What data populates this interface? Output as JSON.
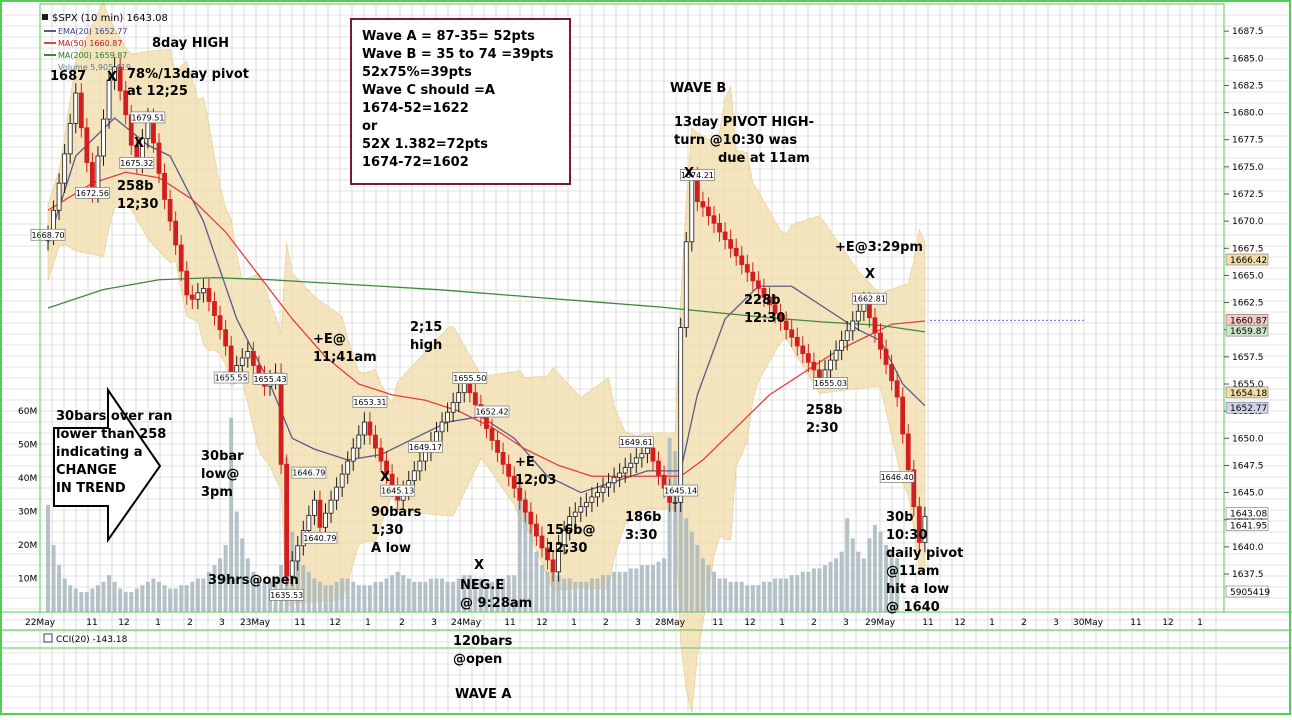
{
  "legend": {
    "symbol": "$SPX (10 min) 1643.08",
    "ema20": "EMA(20) 1652.77",
    "ma50": "MA(50) 1660.87",
    "ma200": "MA(200) 1659.87",
    "volume": "Volume 5,905,419"
  },
  "colors": {
    "up_candle": "#1a1a1a",
    "down_candle": "#d21e1e",
    "ema": "#5a5a8a",
    "ma50": "#e04040",
    "ma200": "#3a8a3a",
    "band": "#f2dcaa",
    "volume": "#a8b8c0",
    "grid": "#c8c8c8",
    "border": "#55cc55"
  },
  "chart_data": {
    "type": "candlestick",
    "symbol": "$SPX",
    "interval": "10 min",
    "y_range": [
      1634,
      1690
    ],
    "y_ticks": [
      "1687.5",
      "1685.0",
      "1682.5",
      "1680.0",
      "1677.5",
      "1675.0",
      "1672.5",
      "1670.0",
      "1667.5",
      "1665.0",
      "1662.5",
      "1660.0",
      "1657.5",
      "1655.0",
      "1652.5",
      "1650.0",
      "1647.5",
      "1645.0",
      "1642.5",
      "1640.0",
      "1637.5"
    ],
    "y_tick_values": [
      1687.5,
      1685,
      1682.5,
      1680,
      1677.5,
      1675,
      1672.5,
      1670,
      1667.5,
      1665,
      1662.5,
      1660,
      1657.5,
      1655,
      1652.5,
      1650,
      1647.5,
      1645,
      1642.5,
      1640,
      1637.5
    ],
    "right_price_labels": [
      "1666.42",
      "1660.87",
      "1659.87",
      "1654.18",
      "1652.77",
      "1643.08",
      "1641.95",
      "5905419"
    ],
    "right_price_values": [
      1666.42,
      1660.87,
      1659.87,
      1654.18,
      1652.77,
      1643.08,
      1641.95
    ],
    "volume_ticks": [
      "60M",
      "50M",
      "40M",
      "30M",
      "20M",
      "10M"
    ],
    "volume_tick_values": [
      60,
      50,
      40,
      30,
      20,
      10
    ],
    "x_labels": [
      "22May",
      "11",
      "12",
      "1",
      "2",
      "3",
      "23May",
      "11",
      "12",
      "1",
      "2",
      "3",
      "24May",
      "11",
      "12",
      "1",
      "2",
      "3",
      "28May",
      "11",
      "12",
      "1",
      "2",
      "3",
      "29May",
      "11",
      "12",
      "1",
      "2",
      "3",
      "30May",
      "11",
      "12",
      "1"
    ],
    "price_labels": [
      {
        "text": "1679.51",
        "price": 1679.51,
        "bar": 18
      },
      {
        "text": "1675.32",
        "price": 1675.32,
        "bar": 16
      },
      {
        "text": "1672.56",
        "price": 1672.56,
        "bar": 8
      },
      {
        "text": "1668.70",
        "price": 1668.7,
        "bar": 0
      },
      {
        "text": "1655.43",
        "price": 1655.43,
        "bar": 40
      },
      {
        "text": "1655.55",
        "price": 1655.55,
        "bar": 33
      },
      {
        "text": "1646.79",
        "price": 1646.79,
        "bar": 47
      },
      {
        "text": "1640.79",
        "price": 1640.79,
        "bar": 49
      },
      {
        "text": "1635.53",
        "price": 1635.53,
        "bar": 43
      },
      {
        "text": "1653.31",
        "price": 1653.31,
        "bar": 58
      },
      {
        "text": "1655.50",
        "price": 1655.5,
        "bar": 76
      },
      {
        "text": "1652.42",
        "price": 1652.42,
        "bar": 80
      },
      {
        "text": "1649.17",
        "price": 1649.17,
        "bar": 68
      },
      {
        "text": "1645.13",
        "price": 1645.13,
        "bar": 63
      },
      {
        "text": "1649.61",
        "price": 1649.61,
        "bar": 106
      },
      {
        "text": "1645.14",
        "price": 1645.14,
        "bar": 114
      },
      {
        "text": "1674.21",
        "price": 1674.21,
        "bar": 117
      },
      {
        "text": "1655.03",
        "price": 1655.03,
        "bar": 141
      },
      {
        "text": "1662.81",
        "price": 1662.81,
        "bar": 148
      },
      {
        "text": "1646.40",
        "price": 1646.4,
        "bar": 153
      }
    ],
    "series": [
      {
        "name": "$SPX",
        "kind": "candlestick",
        "close": [
          1668.7,
          1671.0,
          1673.5,
          1676.2,
          1679.0,
          1681.8,
          1678.6,
          1675.4,
          1672.6,
          1676.0,
          1679.4,
          1683.0,
          1684.2,
          1682.0,
          1679.8,
          1677.0,
          1675.3,
          1677.6,
          1679.5,
          1677.2,
          1674.4,
          1672.0,
          1670.0,
          1667.8,
          1665.4,
          1663.2,
          1662.8,
          1663.4,
          1663.8,
          1662.6,
          1661.3,
          1660.0,
          1658.5,
          1656.1,
          1656.7,
          1657.4,
          1658.0,
          1656.7,
          1655.8,
          1654.8,
          1655.4,
          1656.0,
          1647.6,
          1637.3,
          1638.7,
          1640.1,
          1641.5,
          1642.9,
          1644.3,
          1641.8,
          1643.1,
          1644.3,
          1645.5,
          1646.7,
          1647.9,
          1649.1,
          1650.3,
          1651.5,
          1650.3,
          1649.1,
          1647.9,
          1646.7,
          1645.5,
          1644.3,
          1645.2,
          1646.1,
          1647.0,
          1647.9,
          1648.8,
          1649.7,
          1650.6,
          1651.5,
          1652.4,
          1653.3,
          1654.2,
          1655.1,
          1654.2,
          1653.1,
          1652.0,
          1650.9,
          1649.8,
          1648.7,
          1647.6,
          1646.5,
          1645.4,
          1644.3,
          1643.2,
          1642.1,
          1641.0,
          1639.9,
          1638.8,
          1637.7,
          1640.2,
          1641.5,
          1642.8,
          1643.2,
          1643.7,
          1644.1,
          1644.6,
          1645.0,
          1645.5,
          1645.9,
          1646.4,
          1646.8,
          1647.3,
          1647.7,
          1648.2,
          1648.6,
          1649.1,
          1647.9,
          1646.6,
          1645.4,
          1644.1,
          1644.1,
          1660.2,
          1668.1,
          1674.1,
          1671.8,
          1671.3,
          1670.5,
          1669.8,
          1669.0,
          1668.3,
          1667.5,
          1666.8,
          1666.0,
          1665.3,
          1664.5,
          1663.8,
          1663.0,
          1662.3,
          1661.5,
          1660.8,
          1660.0,
          1659.3,
          1658.5,
          1657.8,
          1657.0,
          1656.3,
          1655.5,
          1656.3,
          1657.2,
          1658.1,
          1659.0,
          1659.9,
          1660.8,
          1661.7,
          1662.6,
          1661.1,
          1659.7,
          1658.2,
          1656.8,
          1655.3,
          1653.8,
          1650.4,
          1647.1,
          1643.7,
          1640.4,
          1642.8
        ]
      },
      {
        "name": "EMA(20)",
        "kind": "line",
        "color_key": "ema",
        "points": [
          [
            0,
            1668
          ],
          [
            5,
            1676
          ],
          [
            12,
            1679.5
          ],
          [
            18,
            1677
          ],
          [
            22,
            1676
          ],
          [
            28,
            1670
          ],
          [
            34,
            1661
          ],
          [
            40,
            1655
          ],
          [
            44,
            1650
          ],
          [
            48,
            1649
          ],
          [
            54,
            1648
          ],
          [
            60,
            1648.5
          ],
          [
            66,
            1650
          ],
          [
            72,
            1651.5
          ],
          [
            78,
            1652
          ],
          [
            84,
            1650
          ],
          [
            90,
            1646.5
          ],
          [
            96,
            1645
          ],
          [
            102,
            1646
          ],
          [
            108,
            1647
          ],
          [
            114,
            1647
          ],
          [
            117,
            1654
          ],
          [
            122,
            1661
          ],
          [
            128,
            1664
          ],
          [
            134,
            1664
          ],
          [
            140,
            1662
          ],
          [
            146,
            1660
          ],
          [
            150,
            1659
          ],
          [
            154,
            1655
          ],
          [
            158,
            1653
          ]
        ]
      },
      {
        "name": "MA(50)",
        "kind": "line",
        "color_key": "ma50",
        "points": [
          [
            0,
            1671
          ],
          [
            8,
            1673.5
          ],
          [
            14,
            1674.5
          ],
          [
            20,
            1674
          ],
          [
            26,
            1672
          ],
          [
            32,
            1669
          ],
          [
            38,
            1665
          ],
          [
            44,
            1661
          ],
          [
            50,
            1657.5
          ],
          [
            56,
            1655
          ],
          [
            62,
            1654
          ],
          [
            68,
            1653.5
          ],
          [
            74,
            1652.5
          ],
          [
            80,
            1651
          ],
          [
            86,
            1649
          ],
          [
            92,
            1647.5
          ],
          [
            98,
            1646.5
          ],
          [
            104,
            1646.5
          ],
          [
            110,
            1646.5
          ],
          [
            114,
            1646.5
          ],
          [
            118,
            1648
          ],
          [
            124,
            1651
          ],
          [
            130,
            1654
          ],
          [
            136,
            1656
          ],
          [
            142,
            1658
          ],
          [
            148,
            1659.5
          ],
          [
            152,
            1660.5
          ],
          [
            158,
            1660.8
          ]
        ]
      },
      {
        "name": "MA(200)",
        "kind": "line",
        "color_key": "ma200",
        "points": [
          [
            0,
            1662
          ],
          [
            10,
            1663.7
          ],
          [
            20,
            1664.6
          ],
          [
            30,
            1664.8
          ],
          [
            40,
            1664.6
          ],
          [
            50,
            1664.3
          ],
          [
            60,
            1664.0
          ],
          [
            70,
            1663.7
          ],
          [
            80,
            1663.3
          ],
          [
            90,
            1662.9
          ],
          [
            100,
            1662.5
          ],
          [
            110,
            1662.1
          ],
          [
            120,
            1661.6
          ],
          [
            130,
            1661.1
          ],
          [
            140,
            1660.7
          ],
          [
            150,
            1660.4
          ],
          [
            158,
            1659.8
          ]
        ]
      }
    ],
    "volume_millions": [
      32,
      20,
      14,
      10,
      8,
      7,
      6,
      6,
      7,
      8,
      9,
      11,
      9,
      7,
      6,
      6,
      7,
      8,
      9,
      10,
      9,
      8,
      7,
      7,
      8,
      8,
      9,
      10,
      10,
      12,
      14,
      16,
      20,
      58,
      30,
      22,
      16,
      12,
      10,
      9,
      9,
      10,
      14,
      46,
      24,
      18,
      14,
      12,
      10,
      9,
      8,
      8,
      9,
      10,
      10,
      9,
      8,
      8,
      8,
      9,
      9,
      10,
      11,
      12,
      11,
      10,
      9,
      9,
      9,
      10,
      10,
      10,
      9,
      9,
      10,
      11,
      11,
      10,
      10,
      9,
      9,
      10,
      10,
      11,
      11,
      40,
      34,
      26,
      18,
      14,
      12,
      12,
      11,
      10,
      10,
      9,
      9,
      9,
      10,
      10,
      11,
      11,
      12,
      12,
      12,
      13,
      13,
      14,
      14,
      14,
      15,
      16,
      52,
      48,
      36,
      28,
      24,
      20,
      16,
      14,
      12,
      10,
      10,
      9,
      9,
      9,
      8,
      8,
      8,
      9,
      9,
      10,
      10,
      10,
      11,
      11,
      12,
      12,
      13,
      13,
      14,
      15,
      16,
      18,
      28,
      22,
      18,
      16,
      22,
      26,
      24,
      20,
      18,
      16
    ],
    "cci": "CCI(20) -143.18"
  },
  "annotations": {
    "eight_day_high": "8day HIGH",
    "p1687": "1687",
    "x_mark": "X",
    "pivot_78": "78%/13day pivot",
    "at_1225": "at 12;25",
    "b258": "258b",
    "t1230": "12;30",
    "overran_1": "30bars over ran",
    "overran_2": "lower than 258",
    "overran_3": "indicating a",
    "overran_4": "CHANGE",
    "overran_5": "IN TREND",
    "bar30": "30bar",
    "low_at": "low@",
    "t3pm": "3pm",
    "h39": "39hrs@open",
    "pe_1": "+E@",
    "pe_2": "11;41am",
    "h215_1": "2;15",
    "h215_2": "high",
    "bars90": "90bars",
    "t130": "1;30",
    "alow": "A low",
    "pe_3": "+E",
    "t1203": "12;03",
    "b156": "156b@",
    "t1230b": "12;30",
    "b186": "186b",
    "t330": "3:30",
    "nege": "NEG.E",
    "at928": "@ 9:28am",
    "bars120": "120bars",
    "atopen": "@open",
    "wave_a": "WAVE A",
    "wave_b": "WAVE B",
    "pivot13_1": "13day PIVOT HIGH-",
    "pivot13_2": "turn @10:30 was",
    "pivot13_3": "due at 11am",
    "e329": "+E@3:29pm",
    "b228": "228b",
    "t1230c": "12:30",
    "b258b": "258b",
    "t230": "2:30",
    "b30": "30b",
    "t1030": "10:30",
    "dp1": "daily pivot",
    "dp2": "@11am",
    "dp3": "hit a low",
    "dp4": "@ 1640"
  },
  "wave_box": {
    "lines": [
      "Wave A = 87-35= 52pts",
      "Wave B = 35 to 74 =39pts",
      "52x75%=39pts",
      "Wave C should =A",
      "1674-52=1622",
      "or",
      "52X 1.382=72pts",
      "1674-72=1602"
    ]
  }
}
